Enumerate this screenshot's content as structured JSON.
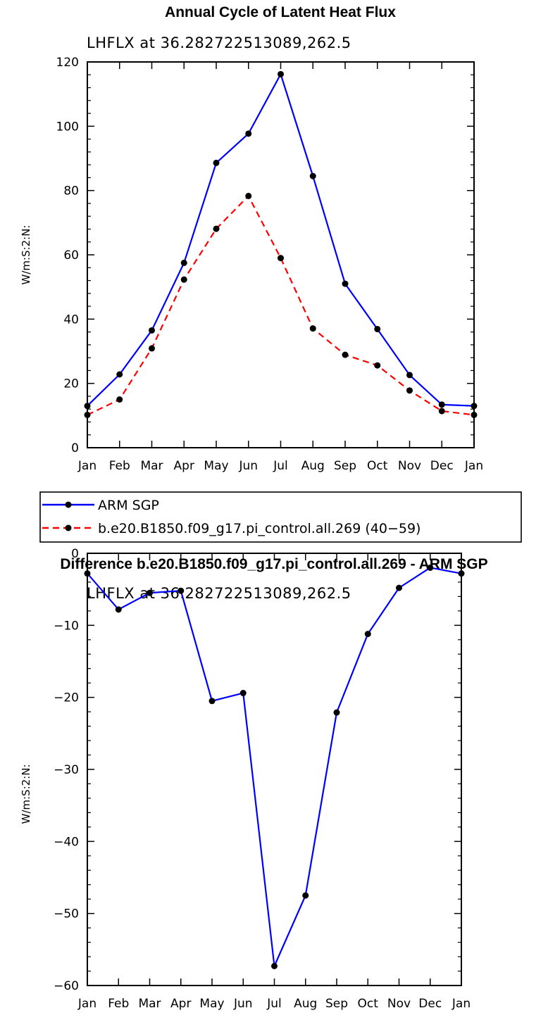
{
  "chart_data": [
    {
      "type": "line",
      "title": "Annual Cycle of Latent Heat Flux",
      "subtitle": "LHFLX at 36.282722513089,262.5",
      "ylabel": "W/m:S:2:N:",
      "xlabel": "",
      "categories": [
        "Jan",
        "Feb",
        "Mar",
        "Apr",
        "May",
        "Jun",
        "Jul",
        "Aug",
        "Sep",
        "Oct",
        "Nov",
        "Dec",
        "Jan"
      ],
      "ylim": [
        0,
        120
      ],
      "yticks": [
        0,
        20,
        40,
        60,
        80,
        100,
        120
      ],
      "grid": false,
      "legend_placement": "below",
      "series": [
        {
          "name": "ARM SGP",
          "color": "#0000ff",
          "dash": "solid",
          "values": [
            13,
            22.8,
            36.5,
            57.5,
            88.6,
            97.7,
            116.2,
            84.5,
            51,
            36.9,
            22.6,
            13.4,
            13
          ]
        },
        {
          "name": "b.e20.B1850.f09_g17.pi_control.all.269 (40−59)",
          "color": "#ff0000",
          "dash": "dashed",
          "values": [
            10.2,
            15,
            30.9,
            52.3,
            68.1,
            78.3,
            59,
            37.1,
            28.9,
            25.6,
            17.8,
            11.4,
            10.2
          ]
        }
      ]
    },
    {
      "type": "line",
      "title": "Difference b.e20.B1850.f09_g17.pi_control.all.269 - ARM SGP",
      "subtitle": "LHFLX at 36.282722513089,262.5",
      "ylabel": "W/m:S:2:N:",
      "xlabel": "",
      "categories": [
        "Jan",
        "Feb",
        "Mar",
        "Apr",
        "May",
        "Jun",
        "Jul",
        "Aug",
        "Sep",
        "Oct",
        "Nov",
        "Dec",
        "Jan"
      ],
      "ylim": [
        -60,
        0
      ],
      "yticks": [
        -60,
        -50,
        -40,
        -30,
        -20,
        -10,
        0
      ],
      "grid": false,
      "series": [
        {
          "color": "#0000ff",
          "dash": "solid",
          "values": [
            -2.8,
            -7.8,
            -5.5,
            -5.2,
            -20.5,
            -19.4,
            -57.3,
            -47.5,
            -22.1,
            -11.2,
            -4.8,
            -2,
            -2.8
          ]
        }
      ]
    }
  ]
}
